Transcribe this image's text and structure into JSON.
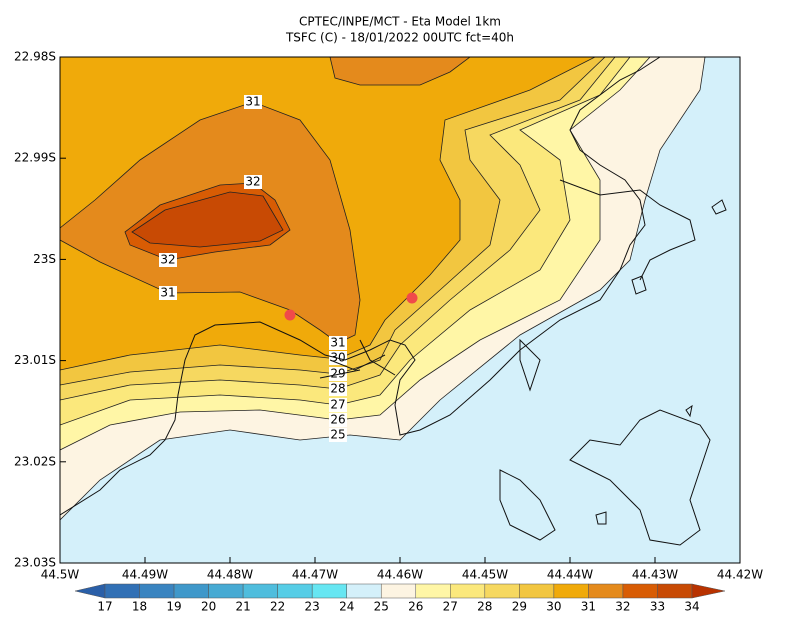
{
  "header": {
    "title": "CPTEC/INPE/MCT -  Eta Model 1km",
    "subtitle": "TSFC (C) - 18/01/2022 00UTC fct=40h"
  },
  "map": {
    "xlim": [
      -44.5,
      -44.42
    ],
    "ylim": [
      -23.03,
      -22.98
    ],
    "xticks": [
      {
        "value": -44.5,
        "label": "44.5W"
      },
      {
        "value": -44.49,
        "label": "44.49W"
      },
      {
        "value": -44.48,
        "label": "44.48W"
      },
      {
        "value": -44.47,
        "label": "44.47W"
      },
      {
        "value": -44.46,
        "label": "44.46W"
      },
      {
        "value": -44.45,
        "label": "44.45W"
      },
      {
        "value": -44.44,
        "label": "44.44W"
      },
      {
        "value": -44.43,
        "label": "44.43W"
      },
      {
        "value": -44.42,
        "label": "44.42W"
      }
    ],
    "yticks": [
      {
        "value": -22.98,
        "label": "22.98S"
      },
      {
        "value": -22.99,
        "label": "22.99S"
      },
      {
        "value": -23.0,
        "label": "23S"
      },
      {
        "value": -23.01,
        "label": "23.01S"
      },
      {
        "value": -23.02,
        "label": "23.02S"
      },
      {
        "value": -23.03,
        "label": "23.03S"
      }
    ],
    "contour_labels": [
      31,
      32,
      32,
      31,
      31,
      30,
      29,
      28,
      27,
      26,
      25
    ],
    "colorbar": {
      "levels": [
        17,
        18,
        19,
        20,
        21,
        22,
        23,
        24,
        25,
        26,
        27,
        28,
        29,
        30,
        31,
        32,
        33,
        34
      ],
      "colors": [
        "#2a5fa8",
        "#3170b5",
        "#3984c0",
        "#3f98ca",
        "#47aad3",
        "#4fbddd",
        "#56cde6",
        "#66e6f2",
        "#d4f0fa",
        "#fdf4e2",
        "#fff6a6",
        "#fbe87c",
        "#f6d860",
        "#f2c640",
        "#f0aa0a",
        "#e48a1c",
        "#d85c04",
        "#c84a04",
        "#b83200"
      ]
    }
  }
}
